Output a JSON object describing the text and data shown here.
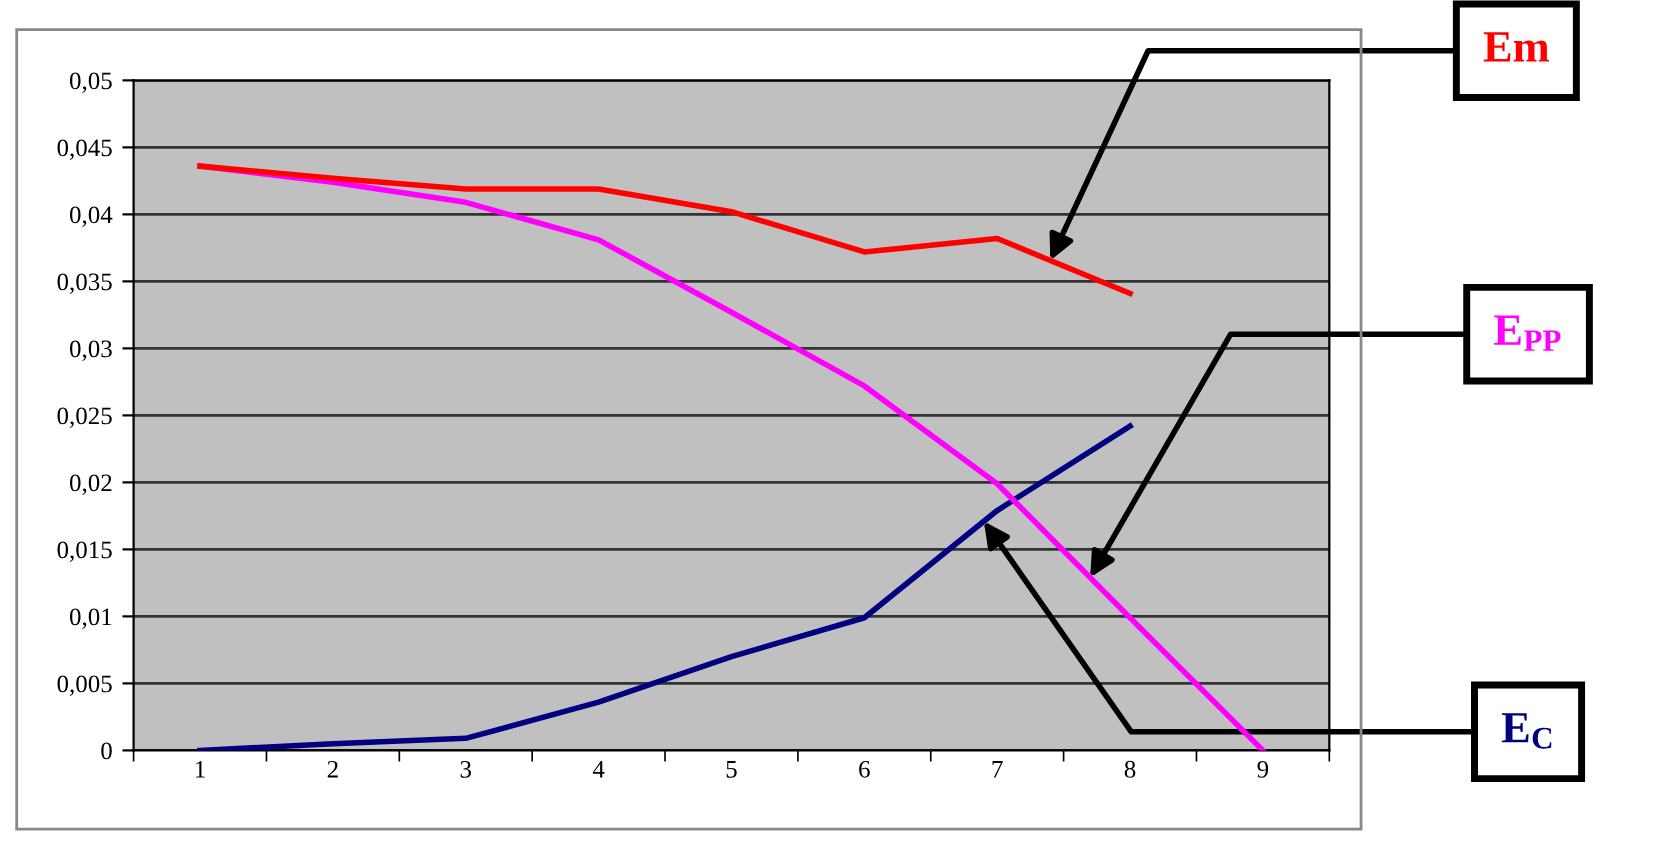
{
  "chart_data": {
    "type": "line",
    "categories": [
      "1",
      "2",
      "3",
      "4",
      "5",
      "6",
      "7",
      "8",
      "9"
    ],
    "ylim": [
      0,
      0.05
    ],
    "yticks": [
      0,
      {
        "value": 0.005,
        "label": "0,005"
      },
      {
        "value": 0.01,
        "label": "0,01"
      },
      {
        "value": 0.015,
        "label": "0,015"
      },
      {
        "value": 0.02,
        "label": "0,02"
      },
      {
        "value": 0.025,
        "label": "0,025"
      },
      {
        "value": 0.03,
        "label": "0,03"
      },
      {
        "value": 0.035,
        "label": "0,035"
      },
      {
        "value": 0.04,
        "label": "0,04"
      },
      {
        "value": 0.045,
        "label": "0,045"
      },
      {
        "value": 0.05,
        "label": "0,05"
      }
    ],
    "grid": "y",
    "legend": false,
    "marker": "none",
    "line_style": "solid",
    "series": [
      {
        "name": "Em",
        "color": "#ff0000",
        "values": [
          0.0436,
          0.0427,
          0.0419,
          0.0419,
          0.0402,
          0.0372,
          0.0382,
          0.0341,
          null
        ]
      },
      {
        "name": "E$_{PP}$",
        "color": "#ff00ff",
        "values": [
          0.0436,
          0.0424,
          0.0409,
          0.0381,
          0.0327,
          0.0272,
          0.0199,
          0.0099,
          0
        ]
      },
      {
        "name": "E$_{C}$",
        "color": "#000080",
        "values": [
          0,
          0.0005,
          0.0009,
          0.0036,
          0.007,
          0.0099,
          0.0179,
          0.0242,
          null
        ]
      }
    ]
  }
}
